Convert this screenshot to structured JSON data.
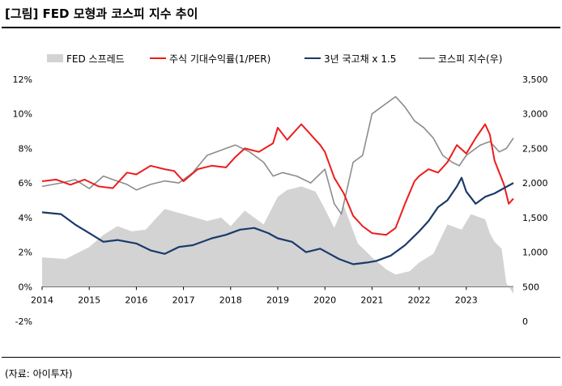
{
  "header": {
    "title": "[그림] FED 모형과 코스피 지수 추이"
  },
  "footer": {
    "source": "(자료: 아이투자)"
  },
  "chart_data": {
    "type": "line",
    "title": "[그림] FED 모형과 코스피 지수 추이",
    "legend_position": "top",
    "x_axis": {
      "labels": [
        "2014",
        "2015",
        "2016",
        "2017",
        "2018",
        "2019",
        "2020",
        "2021",
        "2022",
        "2023"
      ],
      "range": [
        2014,
        2024
      ]
    },
    "y_left": {
      "labels": [
        "12%",
        "10%",
        "8%",
        "6%",
        "4%",
        "2%",
        "0%",
        "-2%"
      ],
      "range": [
        -2,
        12
      ],
      "unit": "%"
    },
    "y_right": {
      "labels": [
        "3,500",
        "3,000",
        "2,500",
        "2,000",
        "1,500",
        "1,000",
        "500",
        "0"
      ],
      "range": [
        0,
        3500
      ]
    },
    "colors": {
      "fed_spread": "#d3d3d3",
      "earnings_yield": "#ee1c1c",
      "bond3y": "#1b3a6b",
      "kospi": "#8c8c8c"
    },
    "series": [
      {
        "name": "FED 스프레드",
        "axis": "left",
        "type": "area",
        "x": [
          2014.0,
          2014.5,
          2015.0,
          2015.3,
          2015.6,
          2015.9,
          2016.2,
          2016.6,
          2017.0,
          2017.5,
          2017.8,
          2018.0,
          2018.3,
          2018.7,
          2019.0,
          2019.2,
          2019.5,
          2019.8,
          2020.0,
          2020.2,
          2020.4,
          2020.7,
          2021.0,
          2021.3,
          2021.5,
          2021.8,
          2022.0,
          2022.3,
          2022.6,
          2022.9,
          2023.1,
          2023.4,
          2023.5,
          2023.6,
          2023.75,
          2023.85,
          2024.0
        ],
        "values": [
          1.7,
          1.6,
          2.3,
          3.0,
          3.5,
          3.2,
          3.3,
          4.5,
          4.2,
          3.8,
          4.0,
          3.5,
          4.4,
          3.6,
          5.2,
          5.6,
          5.8,
          5.5,
          4.5,
          3.4,
          4.7,
          2.5,
          1.7,
          1.0,
          0.7,
          0.9,
          1.4,
          1.9,
          3.6,
          3.3,
          4.2,
          3.9,
          3.1,
          2.6,
          2.2,
          0.2,
          -0.4
        ]
      },
      {
        "name": "주식 기대수익률(1/PER)",
        "axis": "left",
        "type": "line",
        "x": [
          2014.0,
          2014.3,
          2014.6,
          2014.9,
          2015.2,
          2015.5,
          2015.8,
          2016.0,
          2016.3,
          2016.6,
          2016.8,
          2017.0,
          2017.3,
          2017.6,
          2017.9,
          2018.1,
          2018.3,
          2018.6,
          2018.9,
          2019.0,
          2019.2,
          2019.5,
          2019.7,
          2019.9,
          2020.0,
          2020.2,
          2020.4,
          2020.6,
          2020.8,
          2021.0,
          2021.3,
          2021.5,
          2021.7,
          2021.9,
          2022.0,
          2022.2,
          2022.4,
          2022.6,
          2022.8,
          2023.0,
          2023.2,
          2023.4,
          2023.5,
          2023.6,
          2023.8,
          2023.9,
          2024.0
        ],
        "values": [
          6.1,
          6.2,
          5.9,
          6.2,
          5.8,
          5.7,
          6.6,
          6.5,
          7.0,
          6.8,
          6.7,
          6.1,
          6.8,
          7.0,
          6.9,
          7.5,
          8.0,
          7.8,
          8.3,
          9.2,
          8.5,
          9.4,
          8.8,
          8.2,
          7.8,
          6.3,
          5.4,
          4.1,
          3.5,
          3.1,
          3.0,
          3.4,
          4.8,
          6.1,
          6.4,
          6.8,
          6.6,
          7.2,
          8.2,
          7.7,
          8.6,
          9.4,
          8.8,
          7.3,
          5.9,
          4.8,
          5.1
        ]
      },
      {
        "name": "3년 국고채 x 1.5",
        "axis": "left",
        "type": "line",
        "x": [
          2014.0,
          2014.4,
          2014.7,
          2015.0,
          2015.3,
          2015.6,
          2016.0,
          2016.3,
          2016.6,
          2016.9,
          2017.2,
          2017.6,
          2017.9,
          2018.2,
          2018.5,
          2018.8,
          2019.0,
          2019.3,
          2019.6,
          2019.9,
          2020.1,
          2020.3,
          2020.6,
          2020.9,
          2021.1,
          2021.4,
          2021.7,
          2022.0,
          2022.2,
          2022.4,
          2022.6,
          2022.8,
          2022.9,
          2023.0,
          2023.2,
          2023.4,
          2023.6,
          2023.8,
          2024.0
        ],
        "values": [
          4.3,
          4.2,
          3.6,
          3.1,
          2.6,
          2.7,
          2.5,
          2.1,
          1.9,
          2.3,
          2.4,
          2.8,
          3.0,
          3.3,
          3.4,
          3.1,
          2.8,
          2.6,
          2.0,
          2.2,
          1.9,
          1.6,
          1.3,
          1.4,
          1.5,
          1.8,
          2.4,
          3.2,
          3.8,
          4.6,
          5.0,
          5.8,
          6.3,
          5.5,
          4.8,
          5.2,
          5.4,
          5.7,
          6.0
        ]
      },
      {
        "name": "코스피 지수(우)",
        "axis": "right",
        "type": "line",
        "x": [
          2014.0,
          2014.4,
          2014.7,
          2015.0,
          2015.3,
          2015.5,
          2015.8,
          2016.0,
          2016.3,
          2016.6,
          2016.9,
          2017.2,
          2017.5,
          2017.9,
          2018.1,
          2018.4,
          2018.7,
          2018.9,
          2019.1,
          2019.4,
          2019.7,
          2020.0,
          2020.2,
          2020.35,
          2020.6,
          2020.8,
          2021.0,
          2021.3,
          2021.5,
          2021.7,
          2021.9,
          2022.1,
          2022.3,
          2022.5,
          2022.7,
          2022.85,
          2023.0,
          2023.3,
          2023.5,
          2023.7,
          2023.85,
          2024.0
        ],
        "values": [
          1950,
          2000,
          2050,
          1920,
          2100,
          2050,
          1980,
          1900,
          1980,
          2030,
          2000,
          2150,
          2400,
          2500,
          2550,
          2450,
          2300,
          2100,
          2150,
          2100,
          2000,
          2200,
          1700,
          1550,
          2300,
          2400,
          3000,
          3150,
          3250,
          3100,
          2900,
          2800,
          2650,
          2400,
          2300,
          2250,
          2400,
          2550,
          2600,
          2450,
          2500,
          2650
        ]
      }
    ]
  }
}
